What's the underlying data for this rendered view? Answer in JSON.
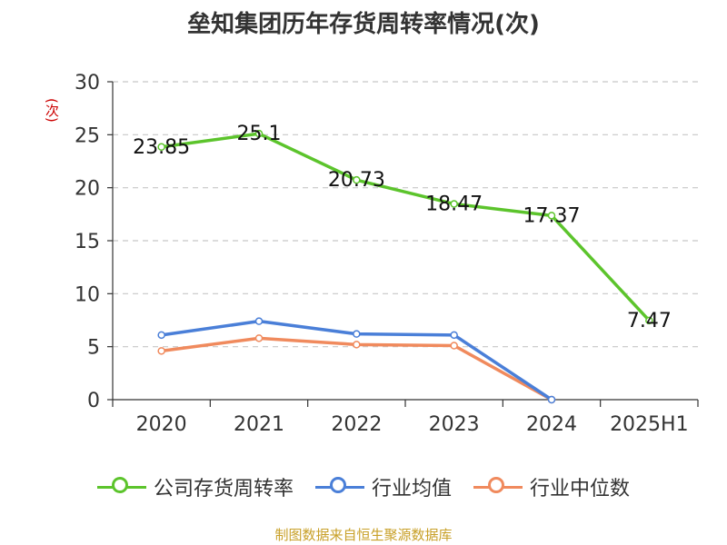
{
  "chart_data": {
    "type": "line",
    "title": "垒知集团历年存货周转率情况(次)",
    "ylabel": "(次)",
    "categories": [
      "2020",
      "2021",
      "2022",
      "2023",
      "2024",
      "2025H1"
    ],
    "ylim": [
      0,
      30
    ],
    "yticks": [
      "0",
      "5",
      "10",
      "15",
      "20",
      "25",
      "30"
    ],
    "grid": true,
    "legend_position": "bottom",
    "series": [
      {
        "name": "公司存货周转率",
        "color": "#5cc42c",
        "values": [
          23.85,
          25.1,
          20.73,
          18.47,
          17.37,
          7.47
        ],
        "labels": [
          "23.85",
          "25.1",
          "20.73",
          "18.47",
          "17.37",
          "7.47"
        ]
      },
      {
        "name": "行业均值",
        "color": "#4a7fd8",
        "values": [
          6.1,
          7.4,
          6.2,
          6.1,
          0,
          null
        ]
      },
      {
        "name": "行业中位数",
        "color": "#f08a5d",
        "values": [
          4.6,
          5.8,
          5.2,
          5.1,
          0,
          null
        ]
      }
    ]
  },
  "source": "制图数据来自恒生聚源数据库"
}
